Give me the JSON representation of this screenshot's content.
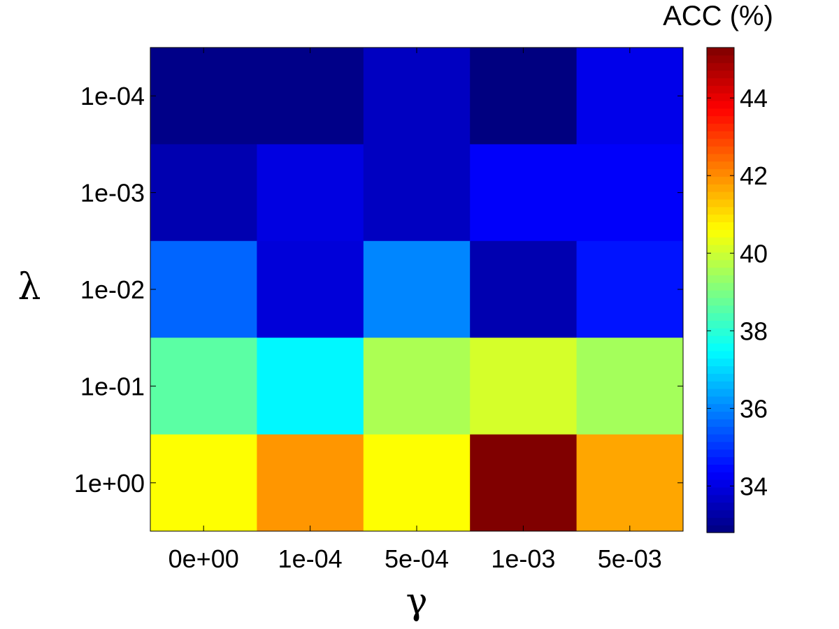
{
  "chart_data": {
    "type": "heatmap",
    "xlabel": "γ",
    "ylabel": "λ",
    "x_categories": [
      "0e+00",
      "1e-04",
      "5e-04",
      "1e-03",
      "5e-03"
    ],
    "y_categories": [
      "1e-04",
      "1e-03",
      "1e-02",
      "1e-01",
      "1e+00"
    ],
    "values": [
      [
        32.9,
        32.9,
        33.6,
        32.8,
        34.1
      ],
      [
        33.4,
        34.0,
        33.6,
        34.3,
        34.3
      ],
      [
        35.6,
        33.9,
        36.0,
        33.4,
        34.6
      ],
      [
        38.6,
        37.4,
        39.6,
        40.1,
        39.5
      ],
      [
        40.6,
        41.9,
        40.6,
        45.3,
        41.7
      ]
    ],
    "colorbar": {
      "title": "ACC (%)",
      "range": [
        32.8,
        45.3
      ],
      "ticks": [
        34,
        36,
        38,
        40,
        42,
        44
      ],
      "colormap": "jet"
    }
  }
}
